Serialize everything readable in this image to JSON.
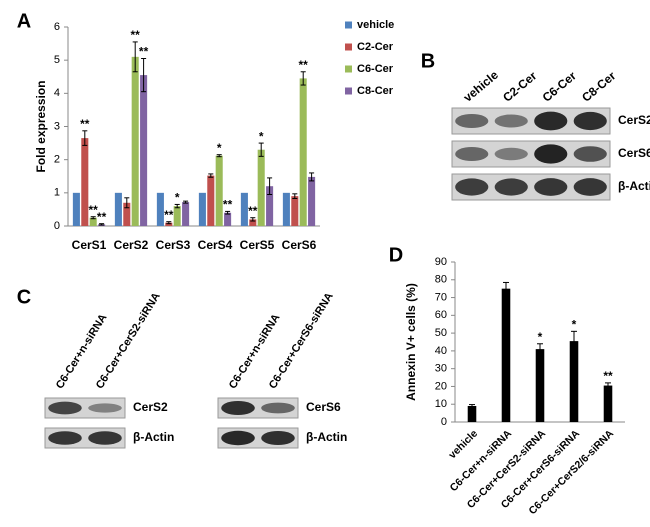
{
  "chart_data": [
    {
      "type": "bar",
      "panel": "A",
      "y_label": "Fold expression",
      "categories": [
        "CerS1",
        "CerS2",
        "CerS3",
        "CerS4",
        "CerS5",
        "CerS6"
      ],
      "series": [
        {
          "name": "vehicle",
          "color": "#4f81bd",
          "values": [
            1,
            1,
            1,
            1,
            1,
            1
          ]
        },
        {
          "name": "C2-Cer",
          "color": "#c0504d",
          "values": [
            2.65,
            0.7,
            0.1,
            1.52,
            0.2,
            0.9
          ],
          "errors": [
            0.22,
            0.15,
            0.03,
            0.05,
            0.05,
            0.07
          ],
          "significance": [
            "**",
            null,
            "**",
            null,
            "**",
            null
          ]
        },
        {
          "name": "C6-Cer",
          "color": "#9bbb59",
          "values": [
            0.25,
            5.1,
            0.6,
            2.12,
            2.3,
            4.45
          ],
          "errors": [
            0.03,
            0.45,
            0.05,
            0.03,
            0.2,
            0.2
          ],
          "significance": [
            "**",
            "**",
            "*",
            "*",
            "*",
            "**"
          ]
        },
        {
          "name": "C8-Cer",
          "color": "#8064a2",
          "values": [
            0.05,
            4.55,
            0.72,
            0.4,
            1.2,
            1.48
          ],
          "errors": [
            0.02,
            0.5,
            0.03,
            0.04,
            0.25,
            0.12
          ],
          "significance": [
            "**",
            "**",
            null,
            "**",
            null,
            null
          ]
        }
      ],
      "ylim": [
        0,
        6
      ],
      "yticks": [
        0,
        1,
        2,
        3,
        4,
        5,
        6
      ],
      "legend": "right"
    },
    {
      "type": "bar",
      "panel": "D",
      "y_label": "Annexin V+ cells (%)",
      "categories": [
        "vehicle",
        "C6-Cer+n-siRNA",
        "C6-Cer+CerS2-siRNA",
        "C6-Cer+CerS6-siRNA",
        "C6-Cer+CerS2/6-siRNA"
      ],
      "values": [
        9,
        75,
        41,
        45.5,
        20.5
      ],
      "errors": [
        0.8,
        3.5,
        3,
        5.5,
        1.5
      ],
      "significance": [
        null,
        null,
        "*",
        "*",
        "**"
      ],
      "color": "#000000",
      "ylim": [
        0,
        90
      ],
      "yticks": [
        0,
        10,
        20,
        30,
        40,
        50,
        60,
        70,
        80,
        90
      ]
    }
  ],
  "blots": {
    "B": {
      "panel": "B",
      "lanes": [
        "vehicle",
        "C2-Cer",
        "C6-Cer",
        "C8-Cer"
      ],
      "rows": [
        "CerS2",
        "CerS6",
        "β-Actin"
      ]
    },
    "C": {
      "panel": "C",
      "blots": [
        {
          "lanes": [
            "C6-Cer+n-siRNA",
            "C6-Cer+CerS2-siRNA"
          ],
          "rows": [
            "CerS2",
            "β-Actin"
          ]
        },
        {
          "lanes": [
            "C6-Cer+n-siRNA",
            "C6-Cer+CerS6-siRNA"
          ],
          "rows": [
            "CerS6",
            "β-Actin"
          ]
        }
      ]
    }
  }
}
